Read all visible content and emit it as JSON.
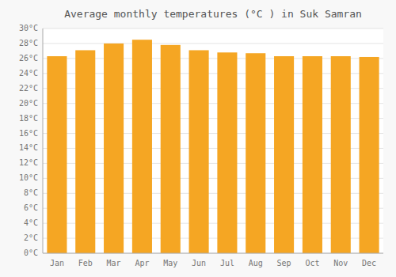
{
  "chart_data": {
    "type": "bar",
    "title": "Average monthly temperatures (°C ) in Suk Samran",
    "categories": [
      "Jan",
      "Feb",
      "Mar",
      "Apr",
      "May",
      "Jun",
      "Jul",
      "Aug",
      "Sep",
      "Oct",
      "Nov",
      "Dec"
    ],
    "values": [
      26.3,
      27.1,
      28.0,
      28.5,
      27.8,
      27.1,
      26.8,
      26.7,
      26.3,
      26.3,
      26.3,
      26.2
    ],
    "color": "#F5A623",
    "ylim": [
      0,
      30
    ],
    "yticks": [
      {
        "value": 0,
        "label": "0°C"
      },
      {
        "value": 2,
        "label": "2°C"
      },
      {
        "value": 4,
        "label": "4°C"
      },
      {
        "value": 6,
        "label": "6°C"
      },
      {
        "value": 8,
        "label": "8°C"
      },
      {
        "value": 10,
        "label": "10°C"
      },
      {
        "value": 12,
        "label": "12°C"
      },
      {
        "value": 14,
        "label": "14°C"
      },
      {
        "value": 16,
        "label": "16°C"
      },
      {
        "value": 18,
        "label": "18°C"
      },
      {
        "value": 20,
        "label": "20°C"
      },
      {
        "value": 22,
        "label": "22°C"
      },
      {
        "value": 24,
        "label": "24°C"
      },
      {
        "value": 26,
        "label": "26°C"
      },
      {
        "value": 28,
        "label": "28°C"
      },
      {
        "value": 30,
        "label": "30°C"
      }
    ],
    "grid": true
  }
}
